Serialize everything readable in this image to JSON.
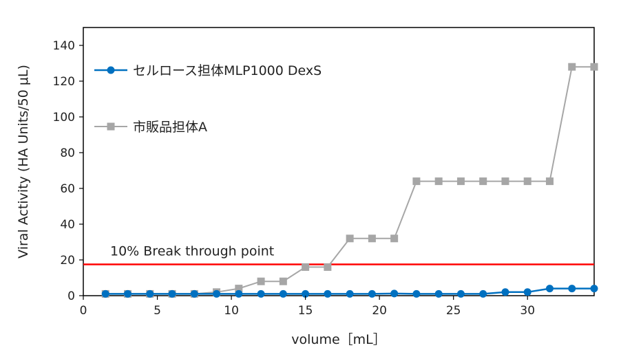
{
  "chart_data": {
    "type": "line",
    "xlabel": "volume［mL］",
    "ylabel": "Viral Activity (HA Units/50 μL)",
    "xlim": [
      0,
      34.5
    ],
    "ylim": [
      0,
      150
    ],
    "x_ticks": [
      0,
      5,
      10,
      15,
      20,
      25,
      30
    ],
    "y_ticks": [
      0,
      20,
      40,
      60,
      80,
      100,
      120,
      140
    ],
    "legend_position": "top-left",
    "grid": false,
    "series": [
      {
        "name": "セルロース担体MLP1000 DexS",
        "color": "#0070C0",
        "marker": "circle",
        "x": [
          1.5,
          3,
          4.5,
          6,
          7.5,
          9,
          10.5,
          12,
          13.5,
          15,
          16.5,
          18,
          19.5,
          21,
          22.5,
          24,
          25.5,
          27,
          28.5,
          30,
          31.5,
          33,
          34.5
        ],
        "y": [
          1,
          1,
          1,
          1,
          1,
          1,
          1,
          1,
          1,
          1,
          1,
          1,
          1,
          1.2,
          1,
          1,
          1,
          1,
          2,
          2,
          4,
          4,
          4
        ]
      },
      {
        "name": "市販品担体A",
        "color": "#A6A6A6",
        "marker": "square",
        "x": [
          1.5,
          3,
          4.5,
          6,
          7.5,
          9,
          10.5,
          12,
          13.5,
          15,
          16.5,
          18,
          19.5,
          21,
          22.5,
          24,
          25.5,
          27,
          28.5,
          30,
          31.5,
          33,
          34.5
        ],
        "y": [
          1,
          1,
          1,
          1,
          1,
          2,
          4,
          8,
          8,
          16,
          16,
          32,
          32,
          32,
          64,
          64,
          64,
          64,
          64,
          64,
          64,
          128,
          128
        ]
      }
    ],
    "annotations": [
      {
        "label": "10% Break through point",
        "y": 17.5,
        "color": "#FF0000"
      }
    ]
  }
}
